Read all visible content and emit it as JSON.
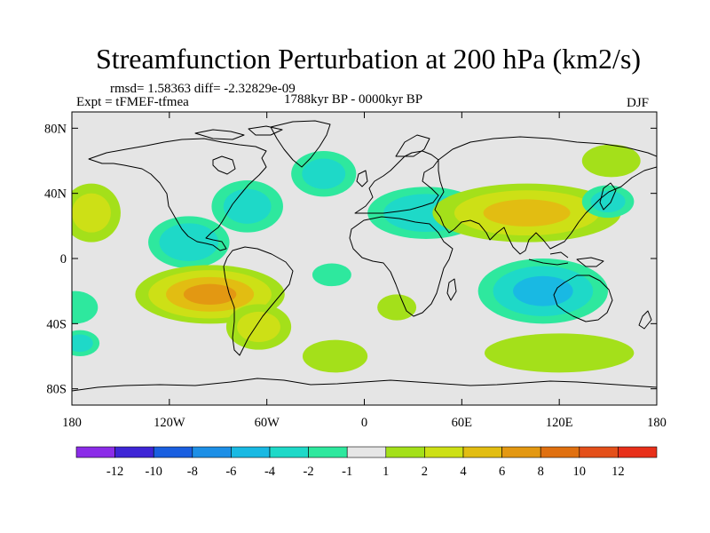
{
  "title": "Streamfunction Perturbation at 200 hPa (km2/s)",
  "stats_text": "rmsd= 1.58363 diff= -2.32829e-09",
  "experiment_text": "Expt = tFMEF-tfmea",
  "period_text": "1788kyr BP - 0000kyr BP",
  "season_text": "DJF",
  "map": {
    "projection": "cylindrical equidistant",
    "lon_range": [
      -180,
      180
    ],
    "lat_range": [
      -90,
      90
    ],
    "background_color": "#e5e5e5",
    "coastline_color": "#000000",
    "x_ticks": [
      {
        "lon": -180,
        "label": "180"
      },
      {
        "lon": -120,
        "label": "120W"
      },
      {
        "lon": -60,
        "label": "60W"
      },
      {
        "lon": 0,
        "label": "0"
      },
      {
        "lon": 60,
        "label": "60E"
      },
      {
        "lon": 120,
        "label": "120E"
      },
      {
        "lon": 180,
        "label": "180"
      }
    ],
    "y_ticks": [
      {
        "lat": 80,
        "label": "80N"
      },
      {
        "lat": 40,
        "label": "40N"
      },
      {
        "lat": 0,
        "label": "0"
      },
      {
        "lat": -40,
        "label": "40S"
      },
      {
        "lat": -80,
        "label": "80S"
      }
    ]
  },
  "anomalies": [
    {
      "name": "north-pacific-east-positive",
      "lon": -168,
      "lat": 28,
      "rlon": 18,
      "rlat": 18,
      "value": 3
    },
    {
      "name": "tropical-pacific-east-negative",
      "lon": -108,
      "lat": 10,
      "rlon": 25,
      "rlat": 16,
      "value": -4
    },
    {
      "name": "north-america-east-negative",
      "lon": -72,
      "lat": 32,
      "rlon": 22,
      "rlat": 16,
      "value": -3
    },
    {
      "name": "south-pacific-positive",
      "lon": -95,
      "lat": -22,
      "rlon": 46,
      "rlat": 18,
      "value": 7
    },
    {
      "name": "south-america-south-positive",
      "lon": -65,
      "lat": -42,
      "rlon": 20,
      "rlat": 14,
      "value": 3
    },
    {
      "name": "south-atlantic-positive",
      "lon": -18,
      "lat": -60,
      "rlon": 20,
      "rlat": 10,
      "value": 2
    },
    {
      "name": "southwest-pacific-negative",
      "lon": -178,
      "lat": -30,
      "rlon": 14,
      "rlat": 10,
      "value": -2
    },
    {
      "name": "far-south-pacific-negative",
      "lon": -175,
      "lat": -52,
      "rlon": 12,
      "rlat": 8,
      "value": -3
    },
    {
      "name": "north-atlantic-negative",
      "lon": -25,
      "lat": 52,
      "rlon": 20,
      "rlat": 14,
      "value": -3
    },
    {
      "name": "middle-east-negative",
      "lon": 38,
      "lat": 28,
      "rlon": 36,
      "rlat": 16,
      "value": -4
    },
    {
      "name": "asia-positive",
      "lon": 100,
      "lat": 28,
      "rlon": 58,
      "rlat": 18,
      "value": 5
    },
    {
      "name": "kamchatka-positive",
      "lon": 152,
      "lat": 60,
      "rlon": 18,
      "rlat": 10,
      "value": 2
    },
    {
      "name": "west-pacific-negative",
      "lon": 150,
      "lat": 35,
      "rlon": 16,
      "rlat": 10,
      "value": -3
    },
    {
      "name": "south-atlantic-east-positive",
      "lon": 20,
      "lat": -30,
      "rlon": 12,
      "rlat": 8,
      "value": 2
    },
    {
      "name": "australia-negative",
      "lon": 110,
      "lat": -20,
      "rlon": 40,
      "rlat": 20,
      "value": -5
    },
    {
      "name": "antarctic-indian-positive",
      "lon": 120,
      "lat": -58,
      "rlon": 46,
      "rlat": 12,
      "value": 2
    },
    {
      "name": "tropical-atlantic-negative",
      "lon": -20,
      "lat": -10,
      "rlon": 12,
      "rlat": 7,
      "value": -2
    }
  ],
  "colorbar": {
    "colors": [
      "#8b2ce8",
      "#3e25d6",
      "#1a5fe0",
      "#1d8fe6",
      "#19b9e3",
      "#1ed9c8",
      "#2ee89e",
      "#e6e6e6",
      "#a4e01a",
      "#cde016",
      "#e2bd12",
      "#e39812",
      "#e07010",
      "#e4501a",
      "#e8301a"
    ],
    "labels": [
      "-12",
      "-10",
      "-8",
      "-6",
      "-4",
      "-2",
      "-1",
      "1",
      "2",
      "4",
      "6",
      "8",
      "10",
      "12"
    ]
  },
  "levels": [
    -12,
    -10,
    -8,
    -6,
    -4,
    -2,
    -1,
    1,
    2,
    4,
    6,
    8,
    10,
    12
  ]
}
